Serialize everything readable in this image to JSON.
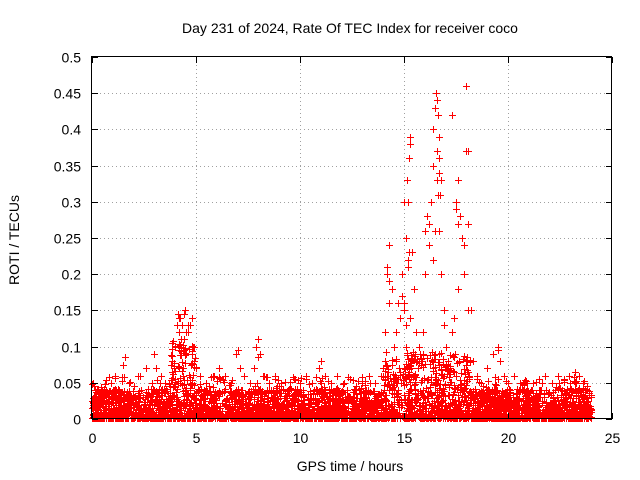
{
  "chart_data": {
    "type": "scatter",
    "title": "Day 231 of 2024, Rate Of TEC Index for receiver coco",
    "xlabel": "GPS time / hours",
    "ylabel": "ROTI / TECUs",
    "xlim": [
      0,
      25
    ],
    "ylim": [
      0,
      0.5
    ],
    "xticks": [
      0,
      5,
      10,
      15,
      20,
      25
    ],
    "xtick_labels": [
      "0",
      "5",
      "10",
      "15",
      "20",
      "25"
    ],
    "yticks": [
      0,
      0.05,
      0.1,
      0.15,
      0.2,
      0.25,
      0.3,
      0.35,
      0.4,
      0.45,
      0.5
    ],
    "ytick_labels": [
      "0",
      "0.05",
      "0.1",
      "0.15",
      "0.2",
      "0.25",
      "0.3",
      "0.35",
      "0.4",
      "0.45",
      "0.5"
    ],
    "grid": true,
    "marker": "+",
    "color": "#ff0000",
    "series": [
      {
        "name": "ROTI",
        "x": [
          0.05,
          0.1,
          0.2,
          0.3,
          0.5,
          0.7,
          0.9,
          1.1,
          1.3,
          1.5,
          1.6,
          1.8,
          2.0,
          2.3,
          2.6,
          2.9,
          3.0,
          3.1,
          3.3,
          3.5,
          3.8,
          4.0,
          4.1,
          4.15,
          4.2,
          4.25,
          4.3,
          4.35,
          4.4,
          4.45,
          4.5,
          4.6,
          4.7,
          4.8,
          4.9,
          5.0,
          5.2,
          5.5,
          5.8,
          6.1,
          6.4,
          6.7,
          6.9,
          7.0,
          7.1,
          7.3,
          7.6,
          7.8,
          7.9,
          8.0,
          8.1,
          8.2,
          8.5,
          8.8,
          9.1,
          9.4,
          9.7,
          10.0,
          10.3,
          10.6,
          10.9,
          11.0,
          11.2,
          11.5,
          11.8,
          12.1,
          12.4,
          12.7,
          13.0,
          13.3,
          13.6,
          13.9,
          14.0,
          14.1,
          14.2,
          14.3,
          14.4,
          14.5,
          14.6,
          14.7,
          14.8,
          14.9,
          15.0,
          15.1,
          15.15,
          15.2,
          15.25,
          15.3,
          15.4,
          15.5,
          15.6,
          15.7,
          15.8,
          15.9,
          16.0,
          16.1,
          16.2,
          16.3,
          16.4,
          16.5,
          16.55,
          16.6,
          16.65,
          16.7,
          16.75,
          16.8,
          16.9,
          17.0,
          17.1,
          17.2,
          17.3,
          17.4,
          17.5,
          17.6,
          17.7,
          17.8,
          17.9,
          18.0,
          18.1,
          18.2,
          18.3,
          18.5,
          18.7,
          19.0,
          19.3,
          19.5,
          19.6,
          19.8,
          20.0,
          20.3,
          20.6,
          20.9,
          21.2,
          21.5,
          21.8,
          22.1,
          22.4,
          22.7,
          23.0,
          23.2,
          23.4,
          23.6,
          23.8,
          24.0,
          4.2,
          4.3,
          4.4,
          4.5,
          4.6,
          8.0,
          8.1,
          14.2,
          14.3,
          14.9,
          15.0,
          15.1,
          15.2,
          15.25,
          15.3,
          15.3,
          16.0,
          16.2,
          16.4,
          16.5,
          16.6,
          16.7,
          16.7,
          17.3,
          17.5,
          17.6,
          17.9,
          18.0,
          18.1,
          19.5,
          16.6,
          16.65,
          17.6,
          18.1,
          16.7,
          15.2,
          17.5,
          16.4,
          15.1,
          15.0,
          14.3,
          16.9,
          16.5,
          16.8
        ],
        "y": [
          0.05,
          0.03,
          0.02,
          0.04,
          0.03,
          0.035,
          0.05,
          0.06,
          0.04,
          0.075,
          0.085,
          0.05,
          0.045,
          0.06,
          0.07,
          0.05,
          0.09,
          0.07,
          0.06,
          0.05,
          0.075,
          0.1,
          0.13,
          0.145,
          0.12,
          0.14,
          0.11,
          0.13,
          0.145,
          0.15,
          0.09,
          0.12,
          0.13,
          0.14,
          0.08,
          0.07,
          0.06,
          0.05,
          0.06,
          0.07,
          0.06,
          0.05,
          0.09,
          0.095,
          0.07,
          0.06,
          0.05,
          0.07,
          0.1,
          0.11,
          0.09,
          0.06,
          0.05,
          0.06,
          0.05,
          0.04,
          0.055,
          0.05,
          0.06,
          0.05,
          0.07,
          0.08,
          0.06,
          0.05,
          0.06,
          0.05,
          0.055,
          0.045,
          0.05,
          0.06,
          0.05,
          0.06,
          0.07,
          0.12,
          0.2,
          0.24,
          0.18,
          0.1,
          0.12,
          0.16,
          0.14,
          0.2,
          0.15,
          0.25,
          0.33,
          0.3,
          0.36,
          0.39,
          0.23,
          0.18,
          0.12,
          0.1,
          0.08,
          0.12,
          0.2,
          0.28,
          0.24,
          0.3,
          0.35,
          0.43,
          0.45,
          0.37,
          0.42,
          0.34,
          0.31,
          0.2,
          0.15,
          0.1,
          0.08,
          0.07,
          0.12,
          0.14,
          0.3,
          0.33,
          0.28,
          0.25,
          0.2,
          0.46,
          0.37,
          0.15,
          0.08,
          0.06,
          0.05,
          0.07,
          0.09,
          0.1,
          0.08,
          0.06,
          0.05,
          0.06,
          0.05,
          0.04,
          0.05,
          0.055,
          0.06,
          0.05,
          0.06,
          0.055,
          0.05,
          0.065,
          0.06,
          0.05,
          0.04,
          0.03,
          0.14,
          0.1,
          0.11,
          0.12,
          0.13,
          0.085,
          0.09,
          0.21,
          0.19,
          0.17,
          0.16,
          0.13,
          0.21,
          0.23,
          0.14,
          0.38,
          0.26,
          0.27,
          0.4,
          0.43,
          0.44,
          0.39,
          0.26,
          0.42,
          0.29,
          0.27,
          0.24,
          0.37,
          0.27,
          0.095,
          0.33,
          0.31,
          0.18,
          0.15,
          0.36,
          0.22,
          0.06,
          0.22,
          0.1,
          0.3,
          0.16,
          0.13,
          0.26,
          0.33
        ]
      }
    ],
    "noise_floor": {
      "description": "dense band of low ROTI values across the whole day",
      "x_range": [
        0,
        24
      ],
      "typical_max": 0.03,
      "point_count": 6000,
      "burst_ranges": [
        {
          "x": [
            3.8,
            5.0
          ],
          "max": 0.14
        },
        {
          "x": [
            14.0,
            18.2
          ],
          "max": 0.12
        }
      ]
    }
  }
}
